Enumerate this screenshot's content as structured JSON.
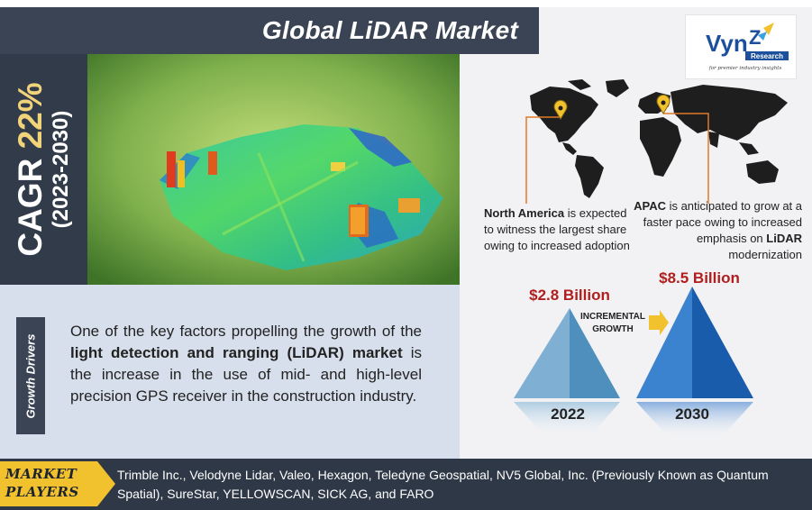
{
  "header": {
    "title": "Global LiDAR Market"
  },
  "cagr": {
    "label": "CAGR",
    "value": "22%",
    "period": "(2023-2030)"
  },
  "logo": {
    "name_part1": "Vyn",
    "name_part2": "Z",
    "sub": "Research",
    "tagline": "for premier industry insights"
  },
  "regions": {
    "north_america": {
      "name": "North America",
      "text": " is expected to witness the largest share owing to increased adoption"
    },
    "apac": {
      "name": "APAC",
      "text_before": " is anticipated to grow at a faster pace owing to increased emphasis on ",
      "bold_word": "LiDAR",
      "text_after": " modernization"
    }
  },
  "market_size": {
    "value_2022": "$2.8 Billion",
    "value_2030": "$8.5 Billion",
    "incremental_line1": "INCREMENTAL",
    "incremental_line2": "GROWTH",
    "year_2022": "2022",
    "year_2030": "2030"
  },
  "growth_drivers": {
    "label": "Growth Drivers",
    "text_before": "One of the key factors propelling the growth of the ",
    "bold": "light detection and ranging (LiDAR) market",
    "text_after": " is the increase in the use of mid- and high-level precision GPS receiver in the construction industry."
  },
  "market_players": {
    "label_line1": "MARKET",
    "label_line2": "PLAYERS",
    "text": "Trimble Inc., Velodyne Lidar, Valeo, Hexagon, Teledyne Geospatial, NV5 Global, Inc. (Previously Known as Quantum Spatial), SureStar, YELLOWSCAN, SICK AG, and FARO"
  },
  "colors": {
    "dark_navy": "#3a4454",
    "accent_yellow": "#f1d37a",
    "value_red": "#b01e1e",
    "panel_blue": "#d7dfec",
    "pyramid_light": "#5b9bc6",
    "pyramid_dark": "#1f66b5",
    "arrow_gold": "#f2c12e"
  },
  "icons": {
    "na_pin": "location-pin-icon",
    "apac_pin": "location-pin-icon",
    "incremental_arrow": "arrow-right-icon"
  }
}
